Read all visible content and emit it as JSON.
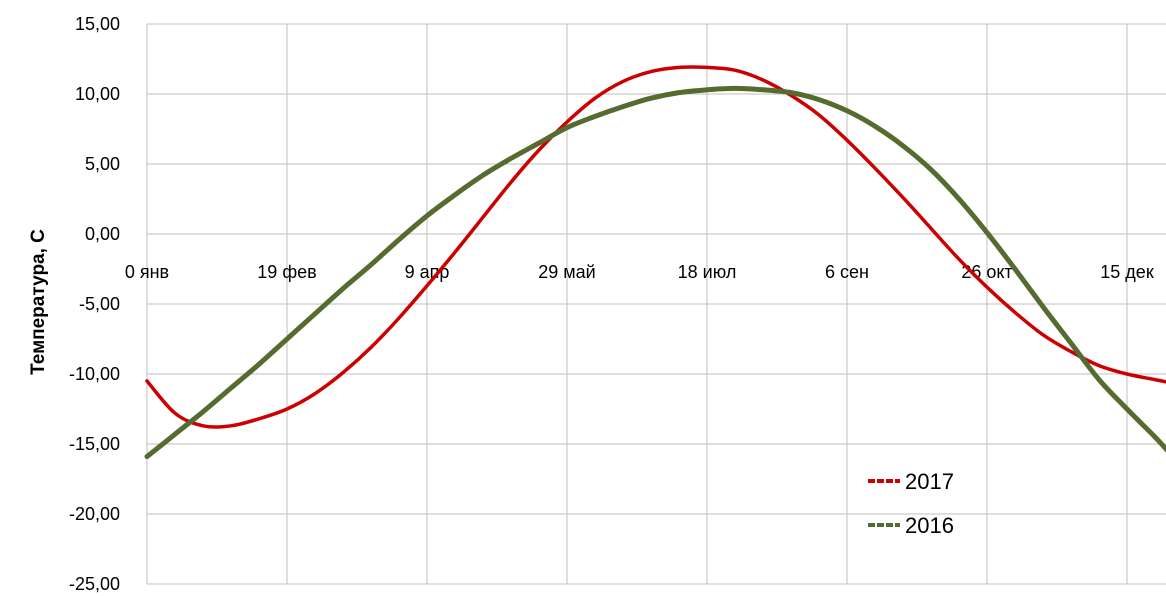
{
  "chart_data": {
    "type": "line",
    "title": "",
    "xlabel": "",
    "ylabel": "Температура, С",
    "x_tick_labels": [
      "0 янв",
      "19 фев",
      "9 апр",
      "29 май",
      "18 июл",
      "6 сен",
      "26 окт",
      "15 дек"
    ],
    "x_tick_values": [
      0,
      50,
      100,
      150,
      200,
      250,
      300,
      350
    ],
    "y_tick_labels": [
      "15,00",
      "10,00",
      "5,00",
      "0,00",
      "-5,00",
      "-10,00",
      "-15,00",
      "-20,00",
      "-25,00"
    ],
    "y_tick_values": [
      15,
      10,
      5,
      0,
      -5,
      -10,
      -15,
      -20,
      -25
    ],
    "xlim": [
      0,
      365
    ],
    "ylim": [
      -25,
      15
    ],
    "grid": true,
    "legend_position": "bottom-right",
    "series": [
      {
        "name": "2017",
        "color": "#cc0000",
        "x": [
          0,
          10,
          20,
          30,
          40,
          50,
          60,
          70,
          80,
          90,
          100,
          110,
          120,
          130,
          140,
          150,
          160,
          170,
          180,
          190,
          200,
          210,
          220,
          230,
          240,
          250,
          260,
          270,
          280,
          290,
          300,
          310,
          320,
          330,
          340,
          350,
          360,
          365
        ],
        "values": [
          -10.5,
          -12.8,
          -13.7,
          -13.7,
          -13.2,
          -12.5,
          -11.4,
          -9.9,
          -8.1,
          -6.0,
          -3.7,
          -1.3,
          1.2,
          3.7,
          6.0,
          8.0,
          9.7,
          10.9,
          11.6,
          11.9,
          11.9,
          11.7,
          11.0,
          9.9,
          8.5,
          6.7,
          4.7,
          2.6,
          0.4,
          -1.8,
          -3.8,
          -5.6,
          -7.2,
          -8.4,
          -9.4,
          -10.0,
          -10.4,
          -10.6
        ]
      },
      {
        "name": "2016",
        "color": "#556b2f",
        "x": [
          0,
          10,
          20,
          30,
          40,
          50,
          60,
          70,
          80,
          90,
          100,
          110,
          120,
          130,
          140,
          150,
          160,
          170,
          180,
          190,
          200,
          210,
          220,
          230,
          240,
          250,
          260,
          270,
          280,
          290,
          300,
          310,
          320,
          330,
          340,
          350,
          360,
          365
        ],
        "values": [
          -15.9,
          -14.3,
          -12.7,
          -11.0,
          -9.3,
          -7.5,
          -5.7,
          -3.9,
          -2.2,
          -0.4,
          1.3,
          2.8,
          4.2,
          5.4,
          6.5,
          7.6,
          8.4,
          9.1,
          9.7,
          10.1,
          10.3,
          10.4,
          10.3,
          10.1,
          9.6,
          8.8,
          7.7,
          6.3,
          4.6,
          2.5,
          0.1,
          -2.5,
          -5.2,
          -7.8,
          -10.4,
          -12.5,
          -14.5,
          -15.6
        ]
      }
    ]
  }
}
